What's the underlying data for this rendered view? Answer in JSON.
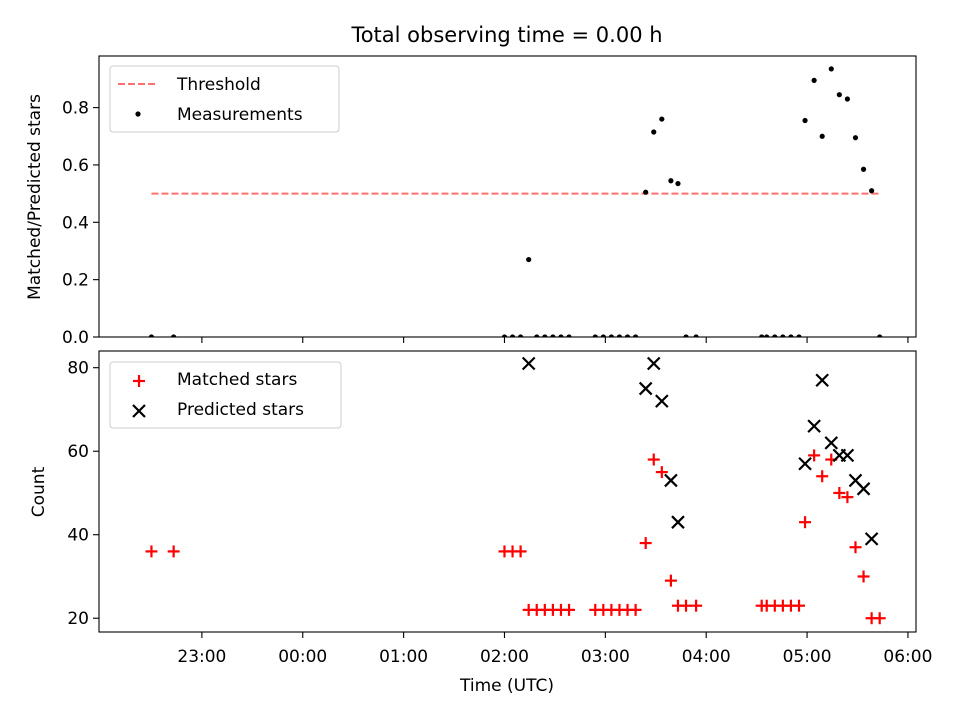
{
  "chart_data": [
    {
      "type": "scatter",
      "title": "Total observing time = 0.00 h",
      "ylabel": "Matched/Predicted stars",
      "xlabel": "",
      "ylim": [
        0,
        0.98
      ],
      "yticks": [
        "0.0",
        "0.2",
        "0.4",
        "0.6",
        "0.8"
      ],
      "ytick_values": [
        0,
        0.2,
        0.4,
        0.6,
        0.8
      ],
      "legend": {
        "placement": "upper-left",
        "entries": [
          "Threshold",
          "Measurements"
        ]
      },
      "threshold": {
        "name": "Threshold",
        "y": 0.5,
        "x_start": 22.5,
        "x_end": 29.72,
        "color": "#ff7070"
      },
      "series": [
        {
          "name": "Measurements",
          "color": "#000000",
          "points": [
            [
              22.5,
              0
            ],
            [
              22.72,
              0
            ],
            [
              26.0,
              0
            ],
            [
              26.08,
              0
            ],
            [
              26.16,
              0
            ],
            [
              26.24,
              0.27
            ],
            [
              26.32,
              0
            ],
            [
              26.4,
              0
            ],
            [
              26.48,
              0
            ],
            [
              26.56,
              0
            ],
            [
              26.64,
              0
            ],
            [
              26.9,
              0
            ],
            [
              26.98,
              0
            ],
            [
              27.06,
              0
            ],
            [
              27.14,
              0
            ],
            [
              27.22,
              0
            ],
            [
              27.3,
              0
            ],
            [
              27.4,
              0.505
            ],
            [
              27.48,
              0.715
            ],
            [
              27.56,
              0.76
            ],
            [
              27.65,
              0.545
            ],
            [
              27.72,
              0.535
            ],
            [
              27.8,
              0
            ],
            [
              27.9,
              0
            ],
            [
              28.55,
              0
            ],
            [
              28.6,
              0
            ],
            [
              28.68,
              0
            ],
            [
              28.76,
              0
            ],
            [
              28.84,
              0
            ],
            [
              28.92,
              0
            ],
            [
              28.98,
              0.755
            ],
            [
              29.07,
              0.895
            ],
            [
              29.15,
              0.7
            ],
            [
              29.24,
              0.935
            ],
            [
              29.32,
              0.845
            ],
            [
              29.4,
              0.83
            ],
            [
              29.48,
              0.695
            ],
            [
              29.56,
              0.585
            ],
            [
              29.64,
              0.51
            ],
            [
              29.72,
              0
            ]
          ]
        }
      ]
    },
    {
      "type": "scatter",
      "title": "",
      "ylabel": "Count",
      "xlabel": "Time (UTC)",
      "ylim": [
        16.7,
        84
      ],
      "yticks": [
        "20",
        "40",
        "60",
        "80"
      ],
      "ytick_values": [
        20,
        40,
        60,
        80
      ],
      "xlim": [
        21.98,
        30.08
      ],
      "xticks": [
        "23:00",
        "00:00",
        "01:00",
        "02:00",
        "03:00",
        "04:00",
        "05:00",
        "06:00"
      ],
      "xtick_values": [
        23,
        24,
        25,
        26,
        27,
        28,
        29,
        30
      ],
      "legend": {
        "placement": "upper-left",
        "entries": [
          "Matched stars",
          "Predicted stars"
        ]
      },
      "series": [
        {
          "name": "Matched stars",
          "marker": "+",
          "color": "#ff0000",
          "points": [
            [
              22.5,
              36
            ],
            [
              22.72,
              36
            ],
            [
              26.0,
              36
            ],
            [
              26.08,
              36
            ],
            [
              26.16,
              36
            ],
            [
              26.24,
              22
            ],
            [
              26.32,
              22
            ],
            [
              26.4,
              22
            ],
            [
              26.48,
              22
            ],
            [
              26.56,
              22
            ],
            [
              26.64,
              22
            ],
            [
              26.9,
              22
            ],
            [
              26.98,
              22
            ],
            [
              27.06,
              22
            ],
            [
              27.14,
              22
            ],
            [
              27.22,
              22
            ],
            [
              27.3,
              22
            ],
            [
              27.4,
              38
            ],
            [
              27.48,
              58
            ],
            [
              27.56,
              55
            ],
            [
              27.65,
              29
            ],
            [
              27.72,
              23
            ],
            [
              27.8,
              23
            ],
            [
              27.9,
              23
            ],
            [
              28.55,
              23
            ],
            [
              28.6,
              23
            ],
            [
              28.68,
              23
            ],
            [
              28.76,
              23
            ],
            [
              28.84,
              23
            ],
            [
              28.92,
              23
            ],
            [
              28.98,
              43
            ],
            [
              29.07,
              59
            ],
            [
              29.15,
              54
            ],
            [
              29.24,
              58
            ],
            [
              29.32,
              50
            ],
            [
              29.4,
              49
            ],
            [
              29.48,
              37
            ],
            [
              29.56,
              30
            ],
            [
              29.64,
              20
            ],
            [
              29.72,
              20
            ]
          ]
        },
        {
          "name": "Predicted stars",
          "marker": "x",
          "color": "#000000",
          "points": [
            [
              26.24,
              81
            ],
            [
              27.4,
              75
            ],
            [
              27.48,
              81
            ],
            [
              27.56,
              72
            ],
            [
              27.65,
              53
            ],
            [
              27.72,
              43
            ],
            [
              28.98,
              57
            ],
            [
              29.07,
              66
            ],
            [
              29.15,
              77
            ],
            [
              29.24,
              62
            ],
            [
              29.32,
              59
            ],
            [
              29.4,
              59
            ],
            [
              29.48,
              53
            ],
            [
              29.56,
              51
            ],
            [
              29.64,
              39
            ]
          ]
        }
      ]
    }
  ]
}
